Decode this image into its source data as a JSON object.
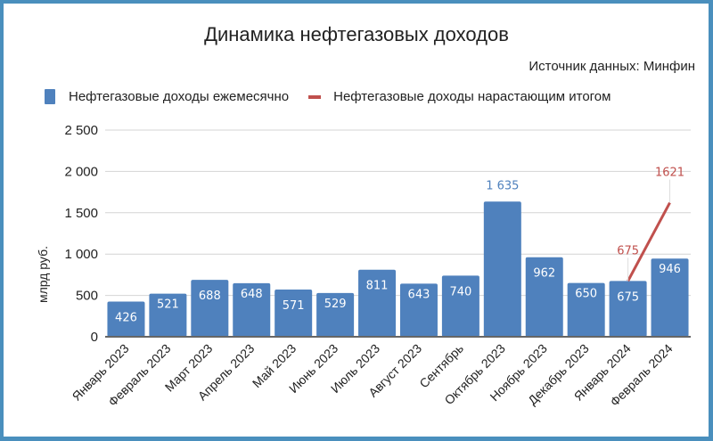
{
  "chart_data": {
    "type": "bar",
    "title": "Динамика нефтегазовых доходов",
    "subtitle": "Источник данных: Минфин",
    "xlabel": "",
    "ylabel": "млрд руб.",
    "ylim": [
      0,
      2500
    ],
    "yticks": [
      "0",
      "500",
      "1 000",
      "1 500",
      "2 000",
      "2 500"
    ],
    "grid": true,
    "legend_position": "top",
    "categories": [
      "Январь 2023",
      "Февраль 2023",
      "Март 2023",
      "Апрель 2023",
      "Май 2023",
      "Июнь 2023",
      "Июль 2023",
      "Август 2023",
      "Сентябрь",
      "Октябрь 2023",
      "Ноябрь 2023",
      "Декабрь 2023",
      "Январь 2024",
      "Февраль 2024"
    ],
    "series": [
      {
        "name": "Нефтегазовые доходы ежемесячно",
        "type": "bar",
        "color": "#4f81bd",
        "values": [
          426,
          521,
          688,
          648,
          571,
          529,
          811,
          643,
          740,
          1635,
          962,
          650,
          675,
          946
        ],
        "labels": [
          "426",
          "521",
          "688",
          "648",
          "571",
          "529",
          "811",
          "643",
          "740",
          "1 635",
          "962",
          "650",
          "675",
          "946"
        ]
      },
      {
        "name": "Нефтегазовые доходы нарастающим итогом",
        "type": "line",
        "color": "#c0504d",
        "values": [
          null,
          null,
          null,
          null,
          null,
          null,
          null,
          null,
          null,
          null,
          null,
          null,
          675,
          1621
        ],
        "labels": [
          "",
          "",
          "",
          "",
          "",
          "",
          "",
          "",
          "",
          "",
          "",
          "",
          "675",
          "1621"
        ]
      }
    ]
  },
  "header": {
    "title": "Динамика нефтегазовых доходов",
    "source": "Источник данных: Минфин"
  },
  "legend": {
    "bar": "Нефтегазовые доходы ежемесячно",
    "line": "Нефтегазовые доходы нарастающим итогом"
  },
  "axis": {
    "ylabel": "млрд руб."
  }
}
